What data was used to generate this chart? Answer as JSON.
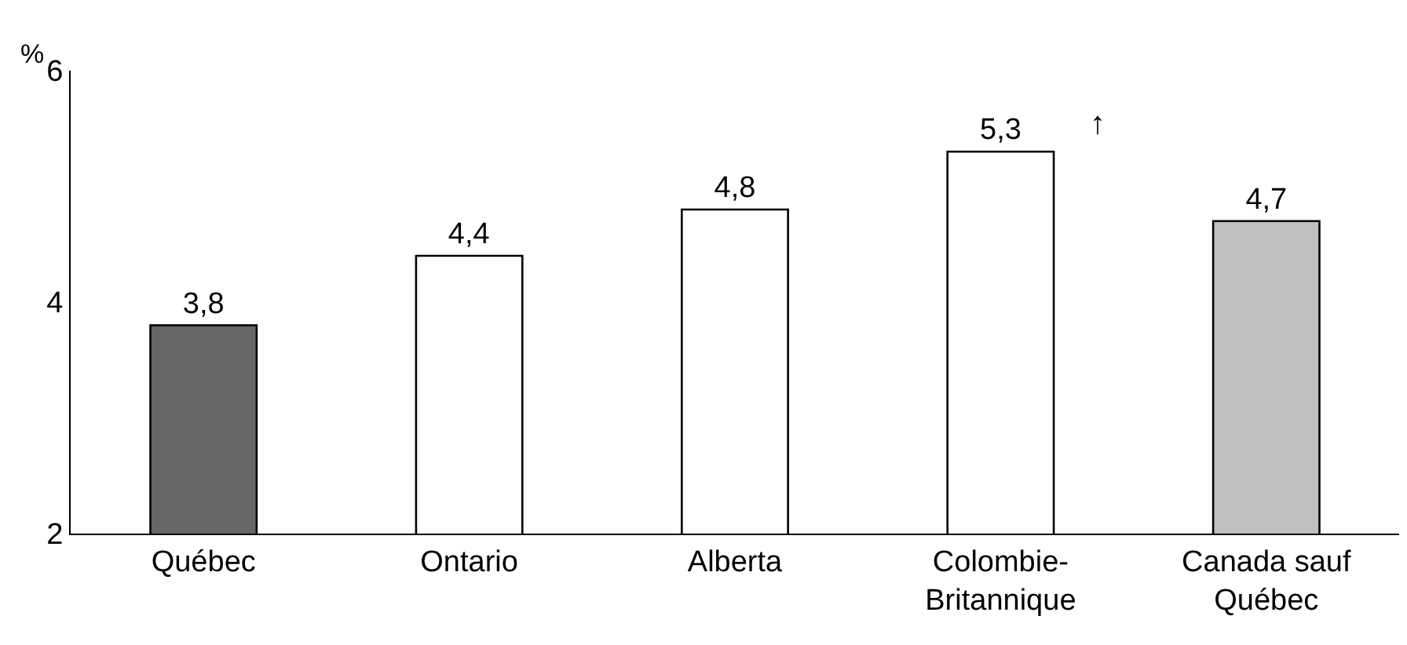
{
  "chart_data": {
    "type": "bar",
    "ylabel": "%",
    "categories": [
      "Québec",
      "Ontario",
      "Alberta",
      "Colombie-Britannique",
      "Canada sauf Québec"
    ],
    "values": [
      3.8,
      4.4,
      4.8,
      5.3,
      4.7
    ],
    "colors": [
      "#666666",
      "#ffffff",
      "#ffffff",
      "#ffffff",
      "#bfbfbf"
    ],
    "ylim": [
      2,
      6
    ],
    "yticks": [
      2,
      4,
      6
    ],
    "grid": false,
    "value_labels": [
      "3,8",
      "4,4",
      "4,8",
      "5,3",
      "4,7"
    ],
    "annotations": [
      {
        "text": "↑",
        "x": "Colombie-Britannique",
        "y": 5.3
      }
    ]
  }
}
